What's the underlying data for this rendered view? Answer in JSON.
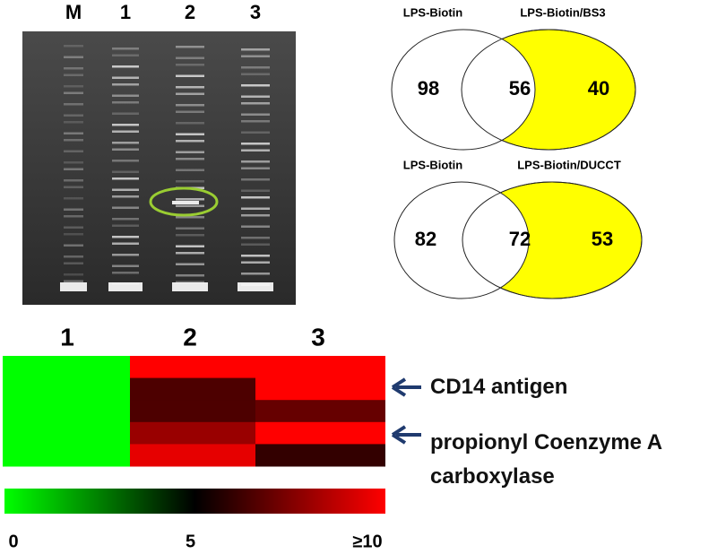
{
  "gel": {
    "lanes": [
      "M",
      "1",
      "2",
      "3"
    ]
  },
  "venn": [
    {
      "left_label": "LPS-Biotin",
      "right_label": "LPS-Biotin/BS3",
      "left_only": 98,
      "both": 56,
      "right_only": 40
    },
    {
      "left_label": "LPS-Biotin",
      "right_label": "LPS-Biotin/DUCCT",
      "left_only": 82,
      "both": 72,
      "right_only": 53
    }
  ],
  "heatmap": {
    "columns": [
      "1",
      "2",
      "3"
    ],
    "rows": [
      [
        0,
        10,
        10
      ],
      [
        0,
        6.5,
        10
      ],
      [
        0,
        6.5,
        7
      ],
      [
        0,
        8,
        10
      ],
      [
        0,
        9.5,
        6
      ]
    ],
    "annotations": [
      "CD14 antigen",
      "propionyl Coenzyme A carboxylase"
    ],
    "scale": {
      "range": [
        0,
        10
      ],
      "ticks": [
        0,
        5,
        {
          "value": 10,
          "label": "≥10"
        }
      ]
    }
  }
}
